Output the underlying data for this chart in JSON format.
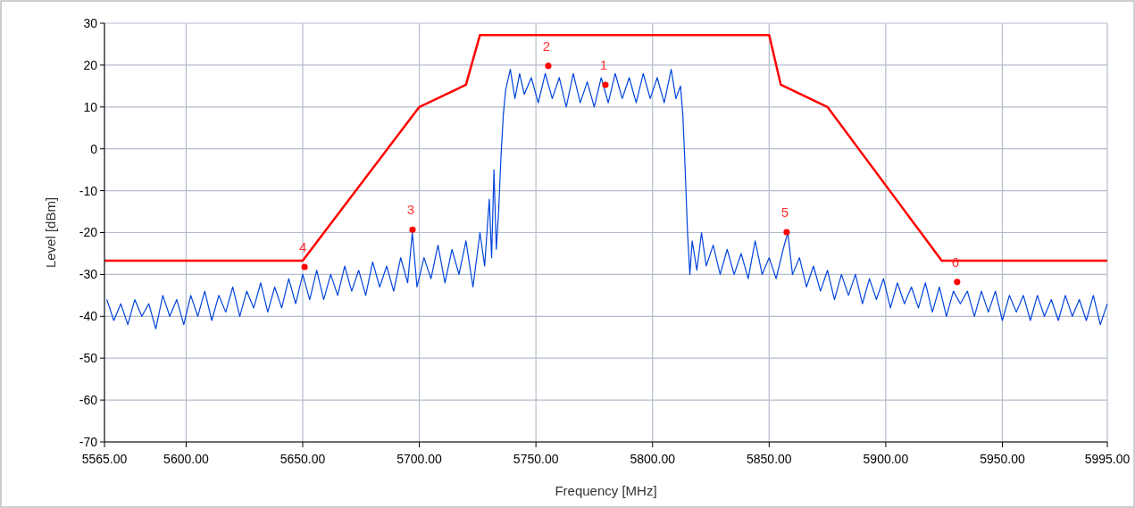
{
  "chart_data": {
    "type": "line",
    "xlabel": "Frequency [MHz]",
    "ylabel": "Level [dBm]",
    "xlim": [
      5565,
      5995
    ],
    "ylim": [
      -70,
      30
    ],
    "xticks": [
      {
        "value": 5565,
        "label": "5565.00"
      },
      {
        "value": 5600,
        "label": "5600.00"
      },
      {
        "value": 5650,
        "label": "5650.00"
      },
      {
        "value": 5700,
        "label": "5700.00"
      },
      {
        "value": 5750,
        "label": "5750.00"
      },
      {
        "value": 5800,
        "label": "5800.00"
      },
      {
        "value": 5850,
        "label": "5850.00"
      },
      {
        "value": 5900,
        "label": "5900.00"
      },
      {
        "value": 5950,
        "label": "5950.00"
      },
      {
        "value": 5995,
        "label": "5995.00"
      }
    ],
    "yticks": [
      -70,
      -60,
      -50,
      -40,
      -30,
      -20,
      -10,
      0,
      10,
      20,
      30
    ],
    "grid": true,
    "marker": "none",
    "line_style": "solid",
    "series": [
      {
        "color": "#0044dd",
        "x": [
          5566,
          5569,
          5572,
          5575,
          5578,
          5581,
          5584,
          5587,
          5590,
          5593,
          5596,
          5599,
          5602,
          5605,
          5608,
          5611,
          5614,
          5617,
          5620,
          5623,
          5626,
          5629,
          5632,
          5635,
          5638,
          5641,
          5644,
          5647,
          5650,
          5653,
          5656,
          5659,
          5662,
          5665,
          5668,
          5671,
          5674,
          5677,
          5680,
          5683,
          5686,
          5689,
          5692,
          5695,
          5697,
          5699,
          5702,
          5705,
          5708,
          5711,
          5714,
          5717,
          5720,
          5723,
          5726,
          5728,
          5730,
          5731,
          5732,
          5733,
          5734,
          5735,
          5736,
          5737,
          5739,
          5741,
          5743,
          5745,
          5748,
          5751,
          5754,
          5757,
          5760,
          5763,
          5766,
          5769,
          5772,
          5775,
          5778,
          5781,
          5784,
          5787,
          5790,
          5793,
          5796,
          5799,
          5802,
          5805,
          5808,
          5810,
          5812,
          5813,
          5814,
          5815,
          5816,
          5817,
          5819,
          5821,
          5823,
          5826,
          5829,
          5832,
          5835,
          5838,
          5841,
          5844,
          5847,
          5850,
          5853,
          5856,
          5858,
          5860,
          5863,
          5866,
          5869,
          5872,
          5875,
          5878,
          5881,
          5884,
          5887,
          5890,
          5893,
          5896,
          5899,
          5902,
          5905,
          5908,
          5911,
          5914,
          5917,
          5920,
          5923,
          5926,
          5929,
          5932,
          5935,
          5938,
          5941,
          5944,
          5947,
          5950,
          5953,
          5956,
          5959,
          5962,
          5965,
          5968,
          5971,
          5974,
          5977,
          5980,
          5983,
          5986,
          5989,
          5992,
          5995
        ],
        "values": [
          -36,
          -41,
          -37,
          -42,
          -36,
          -40,
          -37,
          -43,
          -35,
          -40,
          -36,
          -42,
          -35,
          -40,
          -34,
          -41,
          -35,
          -39,
          -33,
          -40,
          -34,
          -38,
          -32,
          -39,
          -33,
          -38,
          -31,
          -37,
          -30,
          -36,
          -29,
          -36,
          -30,
          -35,
          -28,
          -34,
          -29,
          -35,
          -27,
          -33,
          -28,
          -34,
          -26,
          -32,
          -20,
          -33,
          -26,
          -31,
          -23,
          -32,
          -24,
          -30,
          -22,
          -33,
          -20,
          -28,
          -12,
          -26,
          -5,
          -24,
          -15,
          -2,
          8,
          14,
          19,
          12,
          18,
          13,
          17,
          11,
          18,
          12,
          17,
          10,
          18,
          11,
          16,
          10,
          17,
          11,
          18,
          12,
          17,
          11,
          18,
          12,
          17,
          11,
          19,
          12,
          15,
          8,
          -5,
          -20,
          -30,
          -22,
          -29,
          -20,
          -28,
          -23,
          -30,
          -24,
          -30,
          -25,
          -31,
          -22,
          -30,
          -26,
          -31,
          -24,
          -20,
          -30,
          -26,
          -33,
          -28,
          -34,
          -29,
          -36,
          -30,
          -35,
          -30,
          -37,
          -31,
          -36,
          -31,
          -38,
          -32,
          -37,
          -33,
          -38,
          -32,
          -39,
          -33,
          -40,
          -34,
          -37,
          -34,
          -40,
          -34,
          -39,
          -34,
          -41,
          -35,
          -39,
          -35,
          -41,
          -35,
          -40,
          -36,
          -41,
          -35,
          -40,
          -36,
          -41,
          -35,
          -42,
          -37
        ]
      },
      {
        "color": "#ff0000",
        "x": [
          5565,
          5650,
          5700,
          5720,
          5726,
          5850,
          5855,
          5875,
          5924,
          5995
        ],
        "values": [
          -26.7,
          -26.7,
          10,
          15.3,
          27.2,
          27.2,
          15.3,
          10,
          -26.7,
          -26.7
        ]
      },
      {
        "type": "scatter",
        "color": "#ff0000",
        "marker": "circle",
        "x": [
          5779.8,
          5755.3,
          5697.1,
          5650.8,
          5857.5,
          5930.6
        ],
        "values": [
          15.3,
          19.8,
          -19.3,
          -28.2,
          -19.9,
          -31.8
        ]
      }
    ],
    "annotations": [
      {
        "text": "1",
        "x": 5779.8,
        "y": 15.3
      },
      {
        "text": "2",
        "x": 5755.3,
        "y": 19.8
      },
      {
        "text": "3",
        "x": 5697.1,
        "y": -19.3
      },
      {
        "text": "4",
        "x": 5650.8,
        "y": -28.2
      },
      {
        "text": "5",
        "x": 5857.5,
        "y": -19.9
      },
      {
        "text": "6",
        "x": 5930.6,
        "y": -31.8
      }
    ]
  }
}
